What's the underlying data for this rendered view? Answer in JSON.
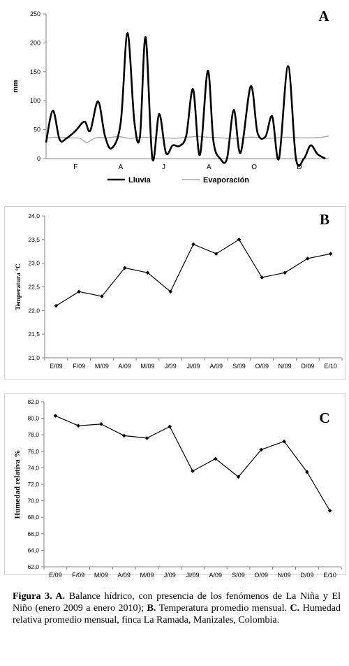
{
  "chart_data": [
    {
      "type": "line",
      "panel_letter": "A",
      "ylabel": "mm",
      "ylim": [
        0,
        250
      ],
      "yticks": [
        0,
        50,
        100,
        150,
        200,
        250
      ],
      "tick_labels": [
        "F",
        "A",
        "J",
        "A",
        "O",
        "D"
      ],
      "x_range": [
        0,
        12.5
      ],
      "tick_positions": [
        1.3,
        3.3,
        5.2,
        7.2,
        9.2,
        11.2
      ],
      "legend": "bottom",
      "series": [
        {
          "name": "Lluvia",
          "color": "#000000",
          "x": [
            0,
            0.3,
            0.6,
            0.9,
            1.3,
            1.7,
            1.95,
            2.3,
            2.6,
            2.9,
            3.3,
            3.6,
            3.9,
            4.15,
            4.4,
            4.7,
            5.0,
            5.3,
            5.6,
            5.9,
            6.2,
            6.5,
            6.8,
            7.15,
            7.4,
            7.7,
            8.0,
            8.3,
            8.6,
            9.05,
            9.35,
            9.7,
            10.0,
            10.3,
            10.7,
            11.05,
            11.4,
            11.7,
            12.0,
            12.35
          ],
          "values": [
            28,
            83,
            33,
            35,
            48,
            64,
            48,
            99,
            40,
            18,
            62,
            217,
            65,
            38,
            210,
            0,
            77,
            10,
            23,
            22,
            40,
            120,
            6,
            152,
            30,
            0,
            0,
            84,
            10,
            125,
            45,
            38,
            73,
            0,
            160,
            0,
            0,
            23,
            8,
            0
          ]
        },
        {
          "name": "Evaporación",
          "color": "#a8a8a8",
          "x": [
            0,
            0.5,
            1.0,
            1.5,
            1.8,
            2.2,
            2.7,
            3.2,
            3.7,
            4.2,
            4.7,
            5.2,
            5.7,
            6.2,
            6.7,
            7.2,
            7.7,
            8.2,
            8.7,
            9.2,
            9.7,
            10.2,
            10.7,
            11.2,
            11.7,
            12.2,
            12.5
          ],
          "values": [
            36,
            37,
            36,
            35,
            28,
            36,
            36,
            38,
            35,
            37,
            36,
            36,
            35,
            37,
            38,
            37,
            36,
            35,
            36,
            37,
            35,
            36,
            37,
            36,
            36,
            37,
            39
          ]
        }
      ]
    },
    {
      "type": "line",
      "panel_letter": "B",
      "ylabel": "Temperatura °C",
      "ylim": [
        21.0,
        24.0
      ],
      "yticks": [
        "21,0",
        "21,5",
        "22,0",
        "22,5",
        "23,0",
        "23,5",
        "24,0"
      ],
      "categories": [
        "E/09",
        "F/09",
        "M/09",
        "A/09",
        "M/09",
        "J/09",
        "Jl/09",
        "A/09",
        "S/09",
        "O/09",
        "N/09",
        "D/09",
        "E/10"
      ],
      "values": [
        22.1,
        22.4,
        22.3,
        22.9,
        22.8,
        22.4,
        23.4,
        23.2,
        23.5,
        22.7,
        22.8,
        23.1,
        23.2
      ],
      "color": "#000000"
    },
    {
      "type": "line",
      "panel_letter": "C",
      "ylabel": "Humedad relativa %",
      "ylim": [
        62.0,
        82.0
      ],
      "yticks": [
        "62,0",
        "64,0",
        "66,0",
        "68,0",
        "70,0",
        "72,0",
        "74,0",
        "76,0",
        "78,0",
        "80,0",
        "82,0"
      ],
      "categories": [
        "E/09",
        "F/09",
        "M/09",
        "A/09",
        "M/09",
        "J/09",
        "Jl/09",
        "A/09",
        "S/09",
        "O/09",
        "N/09",
        "D/09",
        "E/10"
      ],
      "values": [
        80.3,
        79.1,
        79.3,
        77.9,
        77.6,
        79.0,
        73.6,
        75.1,
        72.9,
        76.2,
        77.2,
        73.5,
        68.8
      ],
      "color": "#000000"
    }
  ],
  "caption": {
    "label": "Figura 3. ",
    "a_label": "A.",
    "a_text": " Balance hídrico, con presencia de los fenómenos de La Niña y El Niño (enero 2009 a enero 2010); ",
    "b_label": "B.",
    "b_text": " Temperatura promedio mensual. ",
    "c_label": "C.",
    "c_text": " Humedad relativa promedio mensual, finca La Ramada, Manizales, Colombia."
  }
}
